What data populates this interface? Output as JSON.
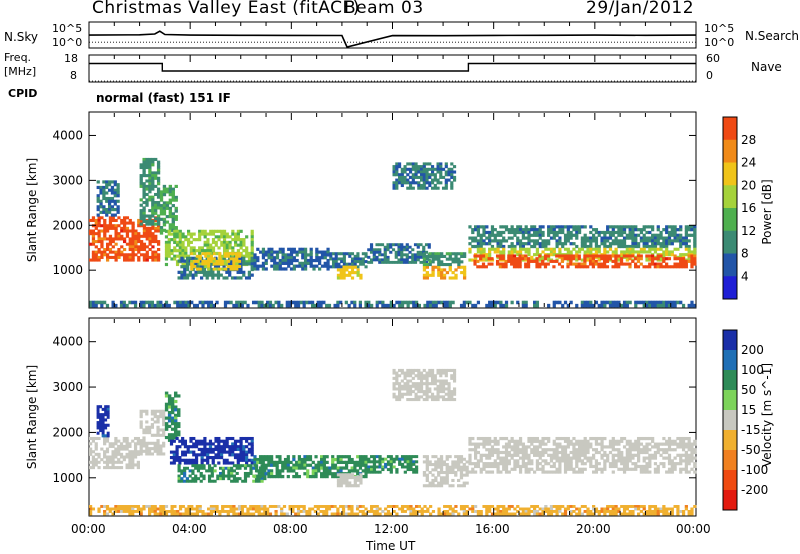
{
  "header": {
    "title": "Christmas Valley East (fitACF)",
    "beam": "Beam 03",
    "date": "29/Jan/2012"
  },
  "top_panels": {
    "nsky_label": "N.Sky",
    "freq_label": "Freq.",
    "mhz_label": "[MHz]",
    "cpid_label": "CPID",
    "cpid_text": "normal (fast) 151 IF",
    "nsearch_label": "N.Search",
    "nave_label": "Nave",
    "noise_left_ticks": [
      "10^5",
      "10^0"
    ],
    "noise_right_ticks": [
      "10^5",
      "10^0"
    ],
    "freq_ticks": [
      "18",
      "8"
    ],
    "nave_ticks": [
      "60",
      "0"
    ]
  },
  "x_axis": {
    "label": "Time UT",
    "ticks": [
      "00:00",
      "04:00",
      "08:00",
      "12:00",
      "16:00",
      "20:00",
      "00:00"
    ]
  },
  "colors": {
    "power_scale": [
      "#1f1fd6",
      "#2255a8",
      "#3b8a73",
      "#4fb04f",
      "#a5d23a",
      "#f0c419",
      "#f08a18",
      "#ef4a14",
      "#e31a0f"
    ],
    "velocity_scale": [
      "#1a2fa8",
      "#1f6fb5",
      "#2e8b57",
      "#7dd35a",
      "#c8c8c0",
      "#f0b030",
      "#f08020",
      "#ef4a10",
      "#e31a0f"
    ]
  },
  "chart_data": [
    {
      "type": "line",
      "panel": "noise",
      "title": "",
      "ylabel": "N.Sky",
      "y_scale": "log",
      "ylim": [
        1,
        100000
      ],
      "x_hours": [
        0,
        2,
        2.6,
        2.8,
        3,
        4,
        6,
        8,
        10,
        10.2,
        12,
        14,
        16,
        18,
        20,
        22,
        24
      ],
      "series": [
        {
          "name": "N.Sky",
          "values": [
            300,
            350,
            500,
            2000,
            400,
            300,
            280,
            260,
            250,
            1,
            240,
            230,
            260,
            280,
            300,
            280,
            300
          ]
        },
        {
          "name": "N.Search",
          "values": [
            10,
            10,
            10,
            10,
            10,
            10,
            10,
            10,
            10,
            10,
            10,
            10,
            10,
            10,
            10,
            10,
            10
          ]
        }
      ]
    },
    {
      "type": "line",
      "panel": "frequency",
      "title": "",
      "ylabel": "Freq. [MHz]",
      "ylim": [
        8,
        18
      ],
      "x_hours": [
        0,
        2.9,
        2.9,
        15,
        15,
        24
      ],
      "series": [
        {
          "name": "Freq.",
          "values": [
            15,
            15,
            12,
            12,
            15,
            15
          ]
        },
        {
          "name": "Nave",
          "values": [
            8,
            8,
            8,
            8,
            8,
            8
          ]
        }
      ]
    },
    {
      "type": "heatmap",
      "panel": "power",
      "title": "",
      "xlabel": "Time UT",
      "ylabel": "Slant Range [km]",
      "xlim": [
        0,
        24
      ],
      "ylim": [
        180,
        4500
      ],
      "y_ticks": [
        1000,
        2000,
        3000,
        4000
      ],
      "colorbar_label": "Power [dB]",
      "colorbar_ticks": [
        4,
        8,
        12,
        16,
        20,
        24,
        28
      ],
      "regions": [
        {
          "t0": 0.0,
          "t1": 2.8,
          "r0": 1200,
          "r1": 2200,
          "level": 26
        },
        {
          "t0": 0.3,
          "t1": 1.2,
          "r0": 2200,
          "r1": 3000,
          "level": 6
        },
        {
          "t0": 2.0,
          "t1": 2.8,
          "r0": 2000,
          "r1": 3500,
          "level": 8
        },
        {
          "t0": 2.8,
          "t1": 3.5,
          "r0": 1800,
          "r1": 2900,
          "level": 10
        },
        {
          "t0": 3.0,
          "t1": 6.5,
          "r0": 1100,
          "r1": 1900,
          "level": 14
        },
        {
          "t0": 3.5,
          "t1": 6.5,
          "r0": 800,
          "r1": 1300,
          "level": 6
        },
        {
          "t0": 4.0,
          "t1": 6.0,
          "r0": 1000,
          "r1": 1400,
          "level": 18
        },
        {
          "t0": 6.5,
          "t1": 9.5,
          "r0": 1000,
          "r1": 1500,
          "level": 5
        },
        {
          "t0": 9.5,
          "t1": 11.0,
          "r0": 1050,
          "r1": 1400,
          "level": 6
        },
        {
          "t0": 9.8,
          "t1": 10.8,
          "r0": 800,
          "r1": 1100,
          "level": 18
        },
        {
          "t0": 11.0,
          "t1": 13.5,
          "r0": 1150,
          "r1": 1600,
          "level": 6
        },
        {
          "t0": 12.0,
          "t1": 14.5,
          "r0": 2800,
          "r1": 3400,
          "level": 6
        },
        {
          "t0": 13.2,
          "t1": 14.9,
          "r0": 800,
          "r1": 1100,
          "level": 20
        },
        {
          "t0": 13.2,
          "t1": 14.9,
          "r0": 1100,
          "r1": 1400,
          "level": 8
        },
        {
          "t0": 15.0,
          "t1": 24.0,
          "r0": 1500,
          "r1": 2000,
          "level": 7
        },
        {
          "t0": 15.0,
          "t1": 24.0,
          "r0": 1200,
          "r1": 1500,
          "level": 16
        },
        {
          "t0": 15.2,
          "t1": 24.0,
          "r0": 1050,
          "r1": 1350,
          "level": 26
        },
        {
          "t0": 0.0,
          "t1": 24.0,
          "r0": 180,
          "r1": 320,
          "level": 5
        }
      ]
    },
    {
      "type": "heatmap",
      "panel": "velocity",
      "title": "",
      "xlabel": "Time UT",
      "ylabel": "Slant Range [km]",
      "xlim": [
        0,
        24
      ],
      "ylim": [
        180,
        4500
      ],
      "y_ticks": [
        1000,
        2000,
        3000,
        4000
      ],
      "colorbar_label": "Velocity [m s^-1]",
      "colorbar_ticks": [
        200,
        100,
        50,
        15,
        -15,
        -50,
        -100,
        -200
      ],
      "regions": [
        {
          "t0": 0.0,
          "t1": 2.0,
          "r0": 1200,
          "r1": 1900,
          "level": 0
        },
        {
          "t0": 0.3,
          "t1": 0.8,
          "r0": 1900,
          "r1": 2600,
          "level": 150
        },
        {
          "t0": 2.0,
          "t1": 3.0,
          "r0": 1500,
          "r1": 2500,
          "level": 0
        },
        {
          "t0": 3.0,
          "t1": 3.6,
          "r0": 1800,
          "r1": 2900,
          "level": 60
        },
        {
          "t0": 3.2,
          "t1": 6.5,
          "r0": 1300,
          "r1": 1900,
          "level": 150
        },
        {
          "t0": 3.5,
          "t1": 7.0,
          "r0": 900,
          "r1": 1300,
          "level": 40
        },
        {
          "t0": 6.5,
          "t1": 11.0,
          "r0": 1000,
          "r1": 1500,
          "level": 40
        },
        {
          "t0": 9.8,
          "t1": 10.8,
          "r0": 800,
          "r1": 1100,
          "level": 0
        },
        {
          "t0": 11.0,
          "t1": 13.0,
          "r0": 1100,
          "r1": 1500,
          "level": 40
        },
        {
          "t0": 12.0,
          "t1": 14.5,
          "r0": 2700,
          "r1": 3400,
          "level": 0
        },
        {
          "t0": 13.2,
          "t1": 15.0,
          "r0": 800,
          "r1": 1500,
          "level": 0
        },
        {
          "t0": 15.0,
          "t1": 24.0,
          "r0": 1100,
          "r1": 1900,
          "level": 0
        },
        {
          "t0": 0.0,
          "t1": 24.0,
          "r0": 180,
          "r1": 400,
          "level": -50
        }
      ]
    }
  ]
}
